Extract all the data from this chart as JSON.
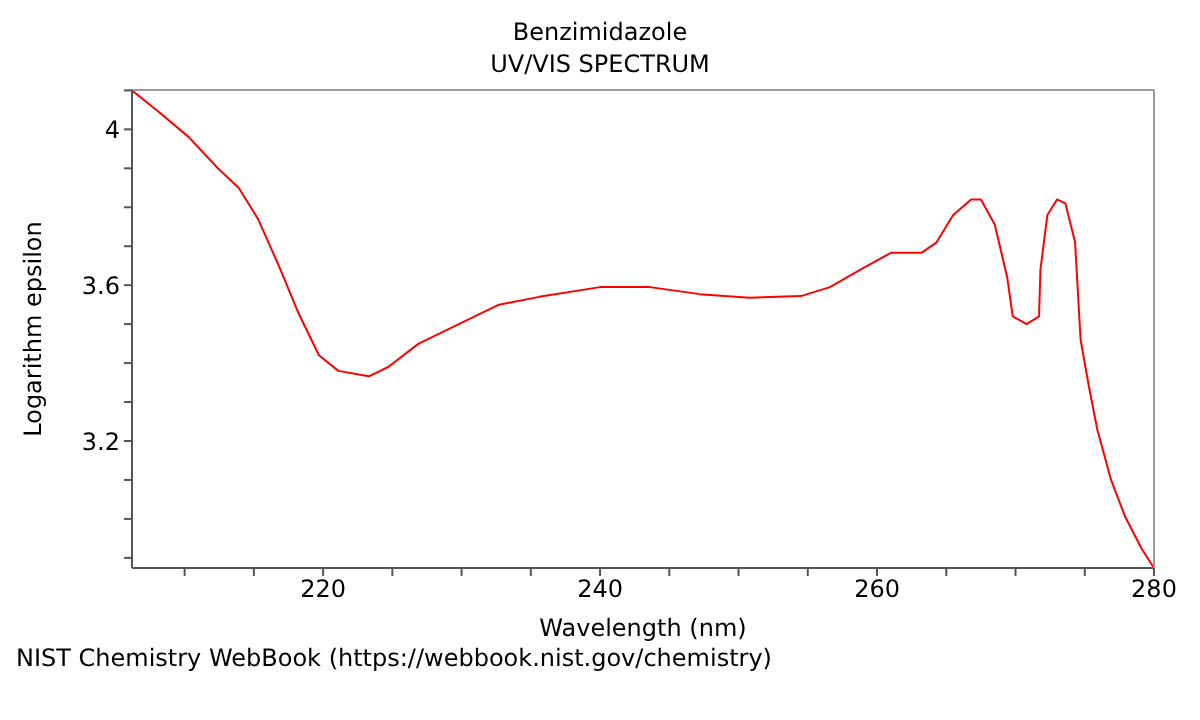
{
  "chart_data": {
    "type": "line",
    "title": "Benzimidazole",
    "subtitle": "UV/VIS SPECTRUM",
    "xlabel": "Wavelength (nm)",
    "ylabel": "Logarithm epsilon",
    "annotations": [
      "NIST Chemistry WebBook (https://webbook.nist.gov/chemistry)"
    ],
    "xlim": [
      206.2,
      280
    ],
    "ylim": [
      2.874,
      4.101
    ],
    "xticks": [
      {
        "value": 210,
        "label": null
      },
      {
        "value": 215,
        "label": null
      },
      220,
      {
        "value": 225,
        "label": null
      },
      {
        "value": 230,
        "label": null
      },
      {
        "value": 235,
        "label": null
      },
      240,
      {
        "value": 245,
        "label": null
      },
      {
        "value": 250,
        "label": null
      },
      {
        "value": 255,
        "label": null
      },
      260,
      {
        "value": 265,
        "label": null
      },
      {
        "value": 270,
        "label": null
      },
      {
        "value": 275,
        "label": null
      },
      280
    ],
    "yticks": [
      {
        "value": 2.9,
        "label": null
      },
      {
        "value": 3.0,
        "label": null
      },
      {
        "value": 3.1,
        "label": null
      },
      3.2,
      {
        "value": 3.3,
        "label": null
      },
      {
        "value": 3.4,
        "label": null
      },
      {
        "value": 3.5,
        "label": null
      },
      3.6,
      {
        "value": 3.7,
        "label": null
      },
      {
        "value": 3.8,
        "label": null
      },
      {
        "value": 3.9,
        "label": null
      },
      4,
      {
        "value": 4.1,
        "label": null
      }
    ],
    "grid": false,
    "legend": false,
    "marker": "none",
    "line_style": "solid",
    "series": [
      {
        "color": "#ff0000",
        "x": [
          206.2,
          208.1,
          210.3,
          212.4,
          213.9,
          215.3,
          216.8,
          218.2,
          219.7,
          221.1,
          223.3,
          224.7,
          226.9,
          229.8,
          232.7,
          235.6,
          240.0,
          243.6,
          247.2,
          250.8,
          254.5,
          256.6,
          258.8,
          261.0,
          263.2,
          264.3,
          265.5,
          266.8,
          267.5,
          268.5,
          269.4,
          269.8,
          270.8,
          271.7,
          271.8,
          272.3,
          273.0,
          273.6,
          274.3,
          274.7,
          275.3,
          275.9,
          276.9,
          277.9,
          279.1,
          280.0
        ],
        "values": [
          4.1,
          4.046,
          3.98,
          3.9,
          3.85,
          3.77,
          3.65,
          3.53,
          3.42,
          3.38,
          3.366,
          3.39,
          3.45,
          3.5,
          3.55,
          3.57,
          3.595,
          3.595,
          3.577,
          3.568,
          3.572,
          3.595,
          3.64,
          3.683,
          3.683,
          3.71,
          3.78,
          3.82,
          3.82,
          3.756,
          3.62,
          3.52,
          3.5,
          3.52,
          3.64,
          3.78,
          3.82,
          3.81,
          3.71,
          3.46,
          3.34,
          3.23,
          3.1,
          3.007,
          2.924,
          2.874
        ]
      }
    ]
  }
}
